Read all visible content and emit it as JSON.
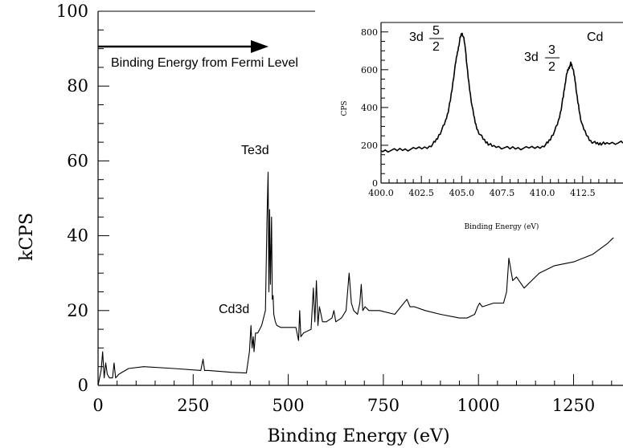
{
  "chart_data": [
    {
      "type": "line",
      "title": "",
      "xlabel": "Binding Energy (eV)",
      "ylabel": "kCPS",
      "xlim": [
        0,
        1380
      ],
      "ylim": [
        0,
        100
      ],
      "xticks": [
        0,
        250,
        500,
        750,
        1000,
        1250
      ],
      "yticks": [
        0,
        20,
        40,
        60,
        80,
        100
      ],
      "grid": false,
      "legend": "none",
      "series": [
        {
          "x": [
            0,
            8,
            12,
            16,
            20,
            24,
            30,
            38,
            42,
            46,
            55,
            80,
            120,
            200,
            270,
            276,
            280,
            290,
            350,
            390,
            398,
            402,
            405,
            408,
            410,
            414,
            420,
            430,
            440,
            444,
            447,
            449,
            451,
            453,
            456,
            458,
            460,
            462,
            466,
            470,
            480,
            520,
            527,
            530,
            533,
            540,
            560,
            566,
            570,
            574,
            578,
            582,
            590,
            600,
            615,
            620,
            625,
            640,
            652,
            656,
            660,
            666,
            672,
            682,
            688,
            692,
            696,
            702,
            712,
            740,
            780,
            812,
            820,
            832,
            860,
            900,
            950,
            970,
            990,
            998,
            1003,
            1010,
            1040,
            1066,
            1074,
            1080,
            1090,
            1100,
            1120,
            1140,
            1160,
            1200,
            1250,
            1300,
            1340,
            1360,
            1370,
            1380
          ],
          "values": [
            0,
            4,
            9,
            2,
            6,
            3,
            2,
            2,
            6,
            2,
            3,
            4.5,
            5,
            4.5,
            4,
            7,
            4,
            4,
            3.5,
            3.3,
            9,
            16,
            10,
            13,
            9,
            14,
            14,
            16,
            20,
            44,
            57,
            25,
            47,
            27,
            45,
            23,
            24,
            19,
            17,
            16,
            15.5,
            15.5,
            12,
            20,
            13,
            14,
            15,
            26,
            17,
            28,
            16,
            21,
            17,
            17,
            18,
            20,
            17,
            18,
            20,
            25,
            30,
            22,
            20,
            19,
            22,
            27,
            20,
            21,
            20,
            20,
            19,
            23,
            21,
            21,
            20,
            19,
            18,
            18,
            19,
            21,
            22,
            21,
            22,
            22,
            25,
            34,
            28,
            29,
            26,
            28,
            30,
            32,
            33,
            35,
            38,
            40,
            44,
            47
          ]
        }
      ],
      "annotations": [
        "Te3d",
        "Cd3d",
        "Binding Energy from Fermi Level"
      ]
    },
    {
      "type": "line",
      "title": "",
      "xlabel": "Binding Energy (eV)",
      "ylabel": "CPS",
      "xlim": [
        400,
        415
      ],
      "ylim": [
        0,
        850
      ],
      "xticks": [
        "400.0",
        "402.5",
        "405.0",
        "407.5",
        "410.0",
        "412.5"
      ],
      "yticks": [
        0,
        200,
        400,
        600,
        800
      ],
      "grid": false,
      "legend": "none",
      "series": [
        {
          "x": [
            400,
            401,
            402,
            403,
            403.5,
            404,
            404.3,
            404.6,
            404.8,
            405,
            405.2,
            405.4,
            405.7,
            406,
            406.5,
            407,
            408,
            409,
            410,
            410.5,
            411,
            411.3,
            411.5,
            411.7,
            411.8,
            412,
            412.2,
            412.5,
            413,
            413.5,
            414,
            415
          ],
          "values": [
            170,
            175,
            180,
            195,
            240,
            330,
            440,
            620,
            720,
            790,
            730,
            560,
            380,
            280,
            220,
            195,
            185,
            185,
            195,
            235,
            330,
            460,
            570,
            620,
            630,
            560,
            430,
            300,
            225,
            210,
            210,
            215
          ]
        }
      ],
      "annotations": [
        "Cd"
      ]
    }
  ],
  "peak_labels": {
    "d52_base": "3d",
    "d52_num": "5",
    "d52_den": "2",
    "d32_base": "3d",
    "d32_num": "3",
    "d32_den": "2"
  }
}
